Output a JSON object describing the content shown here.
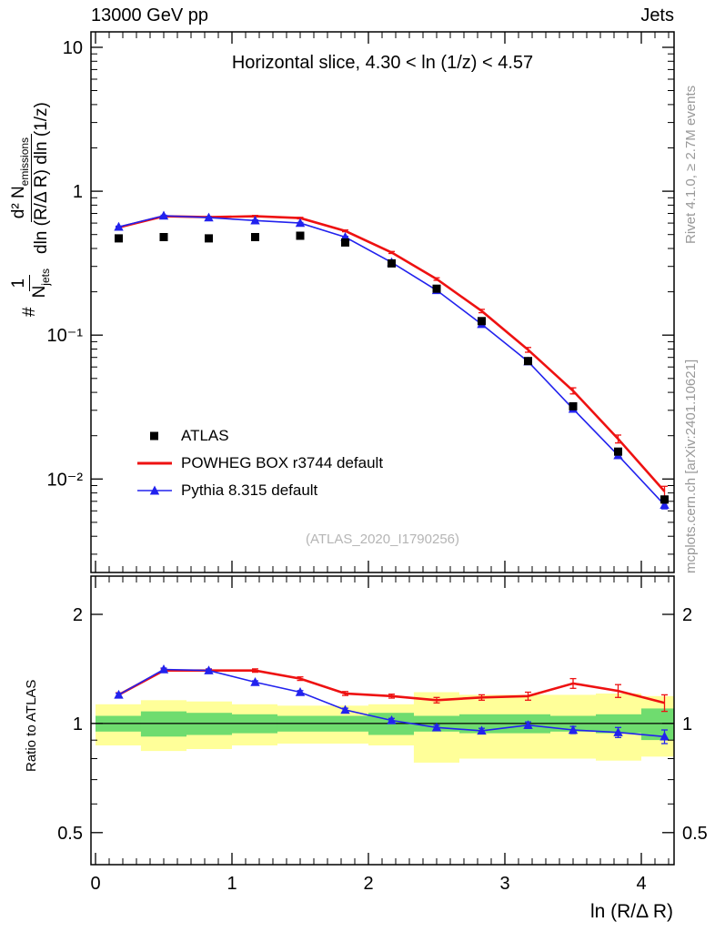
{
  "header": {
    "left": "13000 GeV pp",
    "right": "Jets"
  },
  "side_notes": {
    "top": "Rivet 4.1.0, ≥ 2.7M events",
    "bottom": "mcplots.cern.ch [arXiv:2401.10621]"
  },
  "ui": {
    "panel_title": "Horizontal slice, 4.30 < ln (1/z) < 4.57",
    "watermark": "(ATLAS_2020_I1790256)",
    "ratio_ylabel": "Ratio to ATLAS",
    "x_title": "ln (R/Δ R)",
    "ylabel": {
      "hash": "#",
      "f1num": "1",
      "f1den_base": "N",
      "f1den_sub": "jets",
      "f2num_main": "d² N",
      "f2num_sub": "emissions",
      "f2den": "dln (R/Δ R) dln (1/z)"
    }
  },
  "chart_data": {
    "type": "line",
    "title": "Horizontal slice, 4.30 < ln (1/z) < 4.57",
    "xlabel": "ln (R/Δ R)",
    "ylabel": "# 1/N_jets d²N_emissions / (dln (R/Δ R) dln (1/z))",
    "xlim": [
      -0.033,
      4.24
    ],
    "xticks": {
      "values": [
        0,
        1,
        2,
        3,
        4
      ],
      "labels": [
        "0",
        "1",
        "2",
        "3",
        "4"
      ]
    },
    "x": [
      0.17,
      0.5,
      0.83,
      1.17,
      1.5,
      1.83,
      2.17,
      2.5,
      2.83,
      3.17,
      3.5,
      3.83,
      4.17
    ],
    "main": {
      "yscale": "log",
      "ylim": [
        0.00224,
        12.8
      ],
      "ytick_values": [
        10,
        1,
        0.1,
        0.01
      ],
      "ytick_labels": [
        "10",
        "1",
        "10⁻¹",
        "10⁻²"
      ]
    },
    "series": [
      {
        "name": "ATLAS",
        "color": "#000000",
        "marker": "square",
        "values": [
          0.47,
          0.48,
          0.47,
          0.48,
          0.49,
          0.44,
          0.315,
          0.21,
          0.125,
          0.066,
          0.032,
          0.0155,
          0.0072
        ],
        "yerr": [
          0.012,
          0.012,
          0.012,
          0.012,
          0.012,
          0.011,
          0.008,
          0.006,
          0.004,
          0.0025,
          0.0013,
          0.0007,
          0.0004
        ]
      },
      {
        "name": "POWHEG BOX r3744 default",
        "color": "#ee1111",
        "marker": "none",
        "values": [
          0.56,
          0.67,
          0.66,
          0.67,
          0.65,
          0.53,
          0.375,
          0.245,
          0.147,
          0.079,
          0.041,
          0.019,
          0.0082
        ],
        "yerr": [
          0.008,
          0.008,
          0.008,
          0.008,
          0.008,
          0.007,
          0.006,
          0.005,
          0.004,
          0.003,
          0.002,
          0.0012,
          0.0007
        ],
        "ratio": [
          1.2,
          1.4,
          1.4,
          1.4,
          1.33,
          1.21,
          1.19,
          1.16,
          1.18,
          1.19,
          1.29,
          1.23,
          1.14
        ],
        "ratio_err": [
          0.015,
          0.015,
          0.015,
          0.015,
          0.015,
          0.015,
          0.015,
          0.02,
          0.02,
          0.03,
          0.04,
          0.05,
          0.06
        ]
      },
      {
        "name": "Pythia 8.315 default",
        "color": "#2222ee",
        "marker": "triangle",
        "values": [
          0.565,
          0.675,
          0.655,
          0.625,
          0.6,
          0.48,
          0.32,
          0.205,
          0.119,
          0.0655,
          0.0307,
          0.0146,
          0.0066
        ],
        "yerr": [
          0.006,
          0.006,
          0.006,
          0.006,
          0.006,
          0.005,
          0.004,
          0.003,
          0.002,
          0.0015,
          0.001,
          0.0006,
          0.0004
        ],
        "ratio": [
          1.2,
          1.41,
          1.4,
          1.3,
          1.22,
          1.09,
          1.02,
          0.975,
          0.955,
          0.99,
          0.96,
          0.945,
          0.92
        ],
        "ratio_err": [
          0.012,
          0.012,
          0.012,
          0.012,
          0.012,
          0.012,
          0.013,
          0.015,
          0.015,
          0.02,
          0.022,
          0.03,
          0.04
        ]
      }
    ],
    "ratio": {
      "yscale": "log",
      "ylim": [
        0.408,
        2.55
      ],
      "ytick_values": [
        2,
        1,
        0.5
      ],
      "ytick_labels": [
        "2",
        "1",
        "0.5"
      ],
      "reference": 1,
      "bands": {
        "edges": [
          0,
          0.333,
          0.667,
          1.0,
          1.333,
          1.667,
          2.0,
          2.333,
          2.667,
          3.0,
          3.333,
          3.667,
          4.0,
          4.333
        ],
        "yellow_lo": [
          0.87,
          0.84,
          0.85,
          0.87,
          0.88,
          0.88,
          0.87,
          0.78,
          0.8,
          0.8,
          0.8,
          0.79,
          0.81
        ],
        "yellow_hi": [
          1.13,
          1.16,
          1.15,
          1.13,
          1.12,
          1.12,
          1.13,
          1.22,
          1.2,
          1.2,
          1.2,
          1.21,
          1.19
        ],
        "green_lo": [
          0.95,
          0.92,
          0.93,
          0.94,
          0.95,
          0.95,
          0.93,
          0.95,
          0.94,
          0.94,
          0.95,
          0.94,
          0.9
        ],
        "green_hi": [
          1.05,
          1.08,
          1.07,
          1.06,
          1.05,
          1.05,
          1.07,
          1.05,
          1.06,
          1.06,
          1.05,
          1.06,
          1.1
        ],
        "yellow_color": "#ffff99",
        "green_color": "#6fdc6f"
      }
    }
  }
}
